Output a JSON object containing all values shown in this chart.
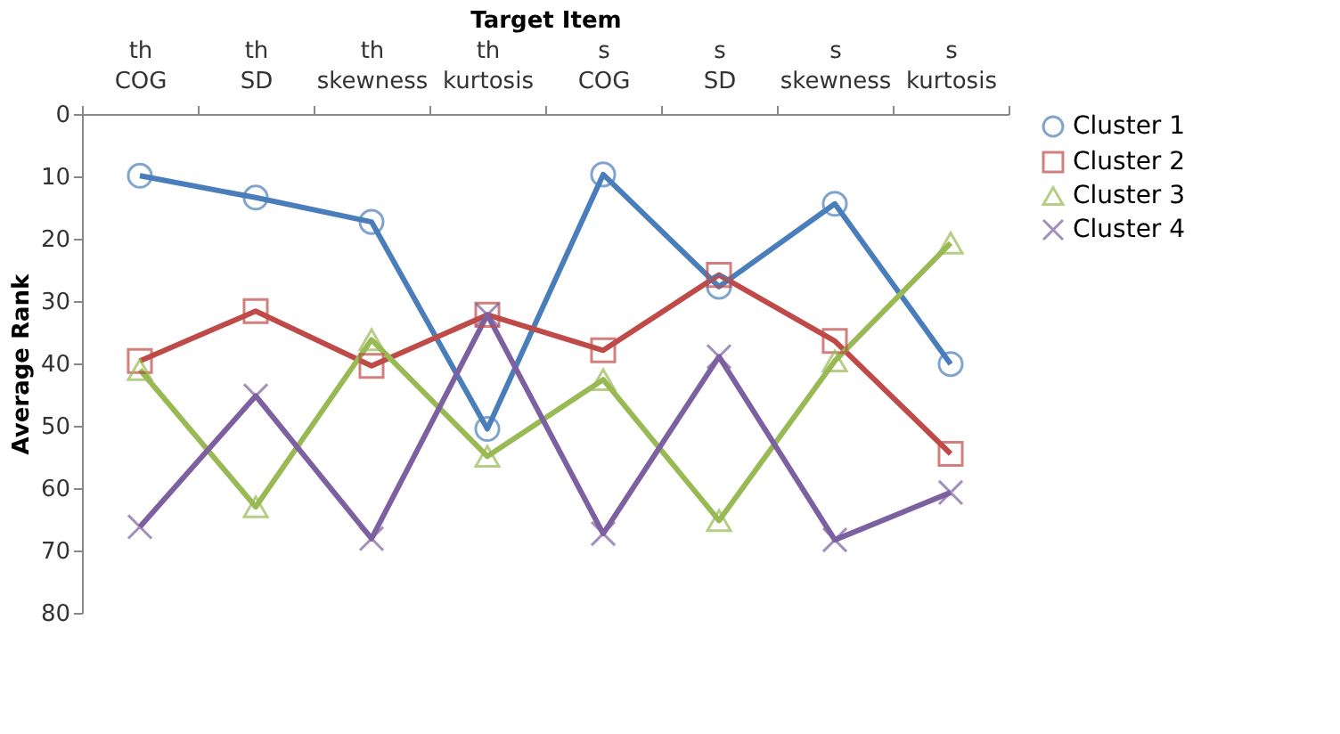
{
  "chart_data": {
    "type": "line",
    "xlabel": "Target Item",
    "ylabel": "Average Rank",
    "categories": [
      "th COG",
      "th SD",
      "th skewness",
      "th kurtosis",
      "s COG",
      "s SD",
      "s skewness",
      "s kurtosis"
    ],
    "ylim": [
      80,
      0
    ],
    "yticks": [
      0,
      10,
      20,
      30,
      40,
      50,
      60,
      70,
      80
    ],
    "grid": false,
    "legend": "right",
    "series": [
      {
        "name": "Cluster 1",
        "color": "#4a7ebb",
        "marker": "circle",
        "values": [
          9.9,
          13.4,
          17.3,
          50.5,
          9.7,
          27.7,
          14.4,
          40.1
        ]
      },
      {
        "name": "Cluster 2",
        "color": "#be4b48",
        "marker": "square",
        "values": [
          39.6,
          31.6,
          40.4,
          32.2,
          37.9,
          25.8,
          36.4,
          54.5
        ]
      },
      {
        "name": "Cluster 3",
        "color": "#98b954",
        "marker": "triangle",
        "values": [
          41.0,
          63.0,
          36.2,
          54.9,
          42.6,
          65.2,
          39.6,
          20.7
        ]
      },
      {
        "name": "Cluster 4",
        "color": "#7d60a0",
        "marker": "cross",
        "values": [
          66.2,
          45.2,
          68.1,
          32.2,
          67.3,
          38.9,
          68.3,
          60.7
        ]
      }
    ]
  }
}
